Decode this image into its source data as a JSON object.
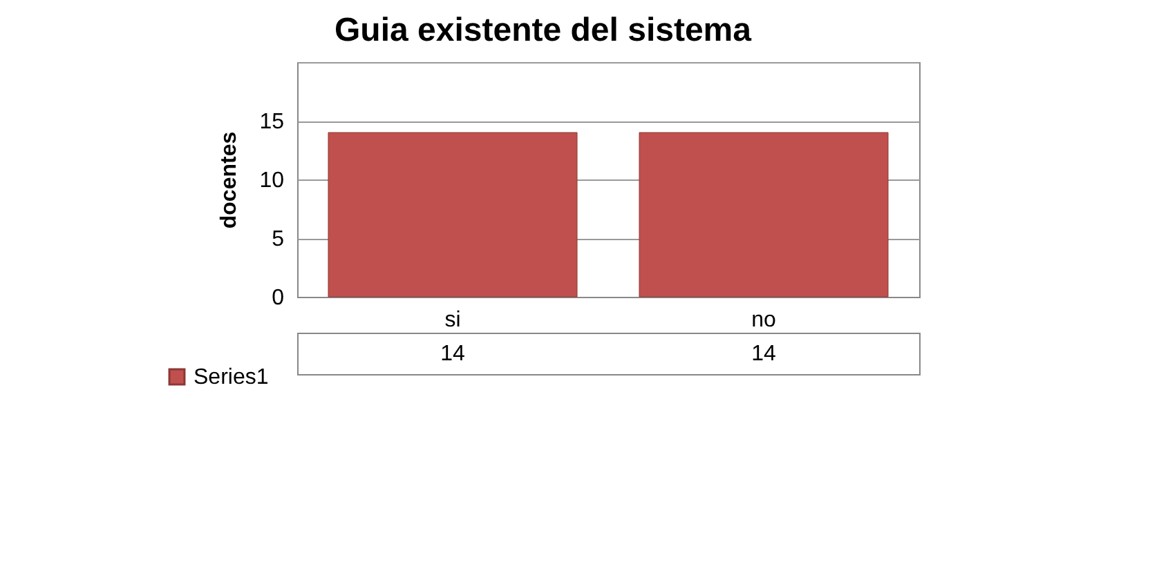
{
  "chart_data": {
    "type": "bar",
    "title": "Guia existente del sistema",
    "ylabel": "docentes",
    "categories": [
      "si",
      "no"
    ],
    "series": [
      {
        "name": "Series1",
        "color": "#c0504d",
        "values": [
          14,
          14
        ]
      }
    ],
    "ylim": [
      0,
      20
    ],
    "yticks": [
      0,
      5,
      10,
      15,
      {
        "value": 20,
        "label": null
      }
    ],
    "grid": "y",
    "data_labels": true,
    "legend": "bottom left"
  }
}
